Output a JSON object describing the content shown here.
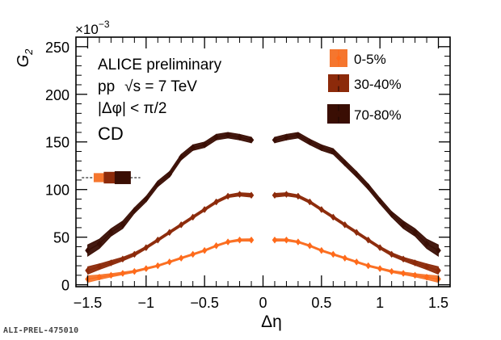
{
  "figure_id": "ALI-PREL-475010",
  "chart_data": {
    "type": "line",
    "ylabel_main": "G",
    "ylabel_sub": "2",
    "xlabel": "Δη",
    "y_scale_label": "×10",
    "y_scale_exp": "−3",
    "xlim": [
      -1.6,
      1.6
    ],
    "ylim": [
      -0.002,
      0.26
    ],
    "x_ticks": [
      {
        "value": -1.5,
        "label": "−1.5"
      },
      {
        "value": -1.0,
        "label": "−1"
      },
      {
        "value": -0.5,
        "label": "−0.5"
      },
      {
        "value": 0.0,
        "label": "0"
      },
      {
        "value": 0.5,
        "label": "0.5"
      },
      {
        "value": 1.0,
        "label": "1"
      },
      {
        "value": 1.5,
        "label": "1.5"
      }
    ],
    "y_ticks": [
      {
        "value": 0.0,
        "label": "0"
      },
      {
        "value": 0.05,
        "label": "50"
      },
      {
        "value": 0.1,
        "label": "100"
      },
      {
        "value": 0.15,
        "label": "150"
      },
      {
        "value": 0.2,
        "label": "200"
      },
      {
        "value": 0.25,
        "label": "250"
      }
    ],
    "annotations": [
      "ALICE preliminary",
      "pp",
      "√s = 7 TeV",
      "|Δφ| < π/2",
      "CD"
    ],
    "legend_position": "top-right",
    "x_left": [
      -1.5,
      -1.4,
      -1.3,
      -1.2,
      -1.1,
      -1.0,
      -0.9,
      -0.8,
      -0.7,
      -0.6,
      -0.5,
      -0.4,
      -0.3,
      -0.2,
      -0.1
    ],
    "x_right": [
      0.1,
      0.2,
      0.3,
      0.4,
      0.5,
      0.6,
      0.7,
      0.8,
      0.9,
      1.0,
      1.1,
      1.2,
      1.3,
      1.4,
      1.5
    ],
    "series": [
      {
        "name": "0-5%",
        "color": "#ff6a1a",
        "band_color": "#f5762e",
        "values_left": [
          0.006,
          0.008,
          0.01,
          0.012,
          0.014,
          0.017,
          0.02,
          0.024,
          0.028,
          0.032,
          0.036,
          0.041,
          0.045,
          0.047,
          0.047
        ],
        "band_half_left": [
          0.0035,
          0.0025,
          0.0018,
          0.0015,
          0.0012,
          0.001,
          0.001,
          0.001,
          0.001,
          0.001,
          0.001,
          0.001,
          0.001,
          0.0012,
          0.0014
        ],
        "values_right": [
          0.047,
          0.047,
          0.045,
          0.041,
          0.036,
          0.032,
          0.028,
          0.024,
          0.02,
          0.017,
          0.014,
          0.012,
          0.01,
          0.008,
          0.006
        ],
        "band_half_right": [
          0.0014,
          0.0012,
          0.001,
          0.001,
          0.001,
          0.001,
          0.001,
          0.001,
          0.001,
          0.001,
          0.0012,
          0.0015,
          0.0018,
          0.0025,
          0.0035
        ]
      },
      {
        "name": "30-40%",
        "color": "#8c2a0a",
        "band_color": "#8c2a0a",
        "values_left": [
          0.015,
          0.019,
          0.023,
          0.027,
          0.032,
          0.039,
          0.047,
          0.055,
          0.063,
          0.071,
          0.079,
          0.087,
          0.093,
          0.095,
          0.094
        ],
        "band_half_left": [
          0.004,
          0.003,
          0.0025,
          0.002,
          0.0018,
          0.0015,
          0.0015,
          0.0015,
          0.0015,
          0.0015,
          0.0015,
          0.0015,
          0.0015,
          0.0018,
          0.002
        ],
        "values_right": [
          0.094,
          0.095,
          0.093,
          0.087,
          0.079,
          0.071,
          0.063,
          0.055,
          0.047,
          0.039,
          0.032,
          0.027,
          0.023,
          0.019,
          0.015
        ],
        "band_half_right": [
          0.002,
          0.0018,
          0.0015,
          0.0015,
          0.0015,
          0.0015,
          0.0015,
          0.0015,
          0.0015,
          0.0015,
          0.0018,
          0.002,
          0.0025,
          0.003,
          0.004
        ]
      },
      {
        "name": "70-80%",
        "color": "#3a0e04",
        "band_color": "#3a0e04",
        "values_left": [
          0.036,
          0.043,
          0.055,
          0.063,
          0.078,
          0.09,
          0.106,
          0.116,
          0.134,
          0.144,
          0.147,
          0.155,
          0.157,
          0.155,
          0.152
        ],
        "band_half_left": [
          0.006,
          0.005,
          0.004,
          0.004,
          0.003,
          0.003,
          0.003,
          0.003,
          0.003,
          0.003,
          0.003,
          0.003,
          0.003,
          0.003,
          0.003
        ],
        "values_right": [
          0.152,
          0.155,
          0.157,
          0.15,
          0.144,
          0.14,
          0.128,
          0.116,
          0.103,
          0.088,
          0.074,
          0.063,
          0.055,
          0.043,
          0.036
        ],
        "band_half_right": [
          0.003,
          0.003,
          0.003,
          0.003,
          0.003,
          0.003,
          0.003,
          0.003,
          0.003,
          0.003,
          0.003,
          0.004,
          0.004,
          0.005,
          0.006
        ]
      }
    ],
    "scale_uncertainty": {
      "y": 0.1125,
      "x_line": [
        -1.55,
        -1.05
      ],
      "boxes": [
        {
          "series": "0-5%",
          "x": -1.4
        },
        {
          "series": "30-40%",
          "x": -1.3
        },
        {
          "series": "70-80%",
          "x": -1.2
        }
      ]
    }
  }
}
